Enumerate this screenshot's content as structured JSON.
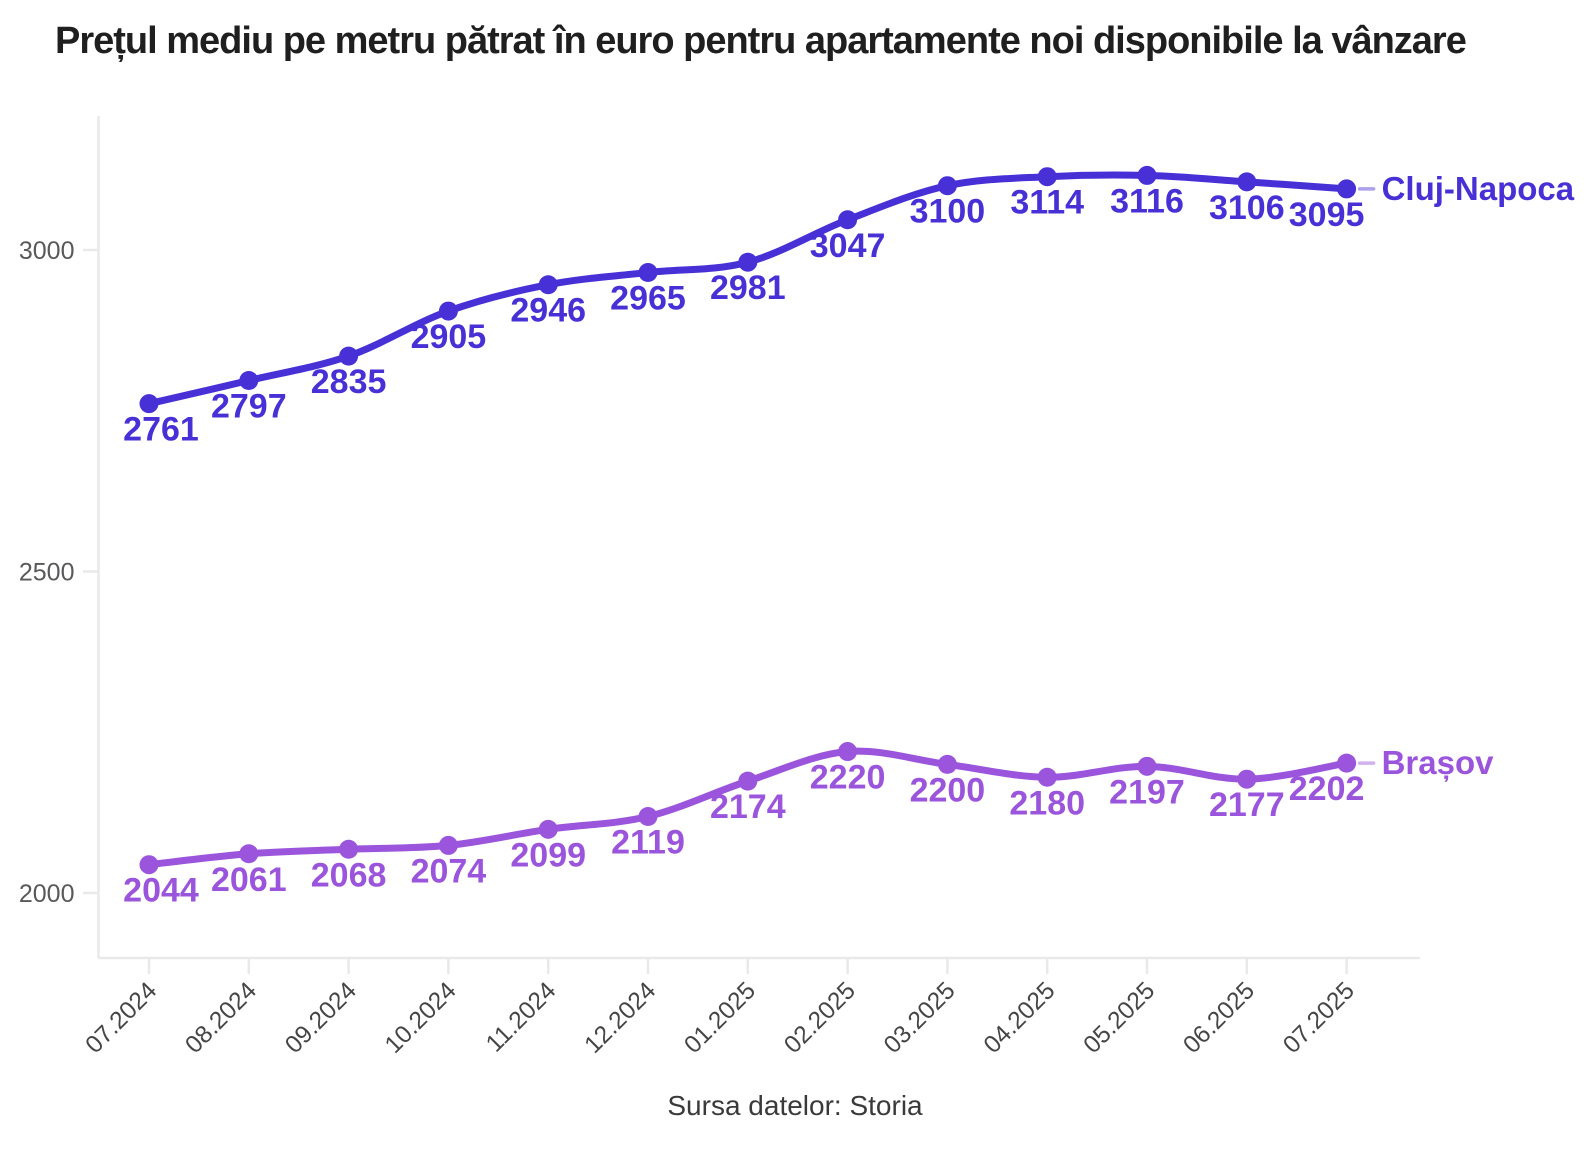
{
  "title": "Prețul mediu pe metru pătrat în euro pentru apartamente noi disponibile la vânzare",
  "source_note": "Sursa datelor: Storia",
  "chart_data": {
    "type": "line",
    "title": "Prețul mediu pe metru pătrat în euro pentru apartamente noi disponibile la vânzare",
    "source": "Sursa datelor: Storia",
    "categories": [
      "07.2024",
      "08.2024",
      "09.2024",
      "10.2024",
      "11.2024",
      "12.2024",
      "01.2025",
      "02.2025",
      "03.2025",
      "04.2025",
      "05.2025",
      "06.2025",
      "07.2025"
    ],
    "series": [
      {
        "name": "Cluj-Napoca",
        "color": "#4731d6",
        "values": [
          2761,
          2797,
          2835,
          2905,
          2946,
          2965,
          2981,
          3047,
          3100,
          3114,
          3116,
          3106,
          3095
        ]
      },
      {
        "name": "Brașov",
        "color": "#9b55dc",
        "values": [
          2044,
          2061,
          2068,
          2074,
          2099,
          2119,
          2174,
          2220,
          2200,
          2180,
          2197,
          2177,
          2202
        ]
      }
    ],
    "yticks": [
      2000,
      2500,
      3000
    ],
    "ylim": [
      1900,
      3260
    ],
    "grid": false,
    "value_labels": "below-points",
    "legend_position": "end-of-line",
    "axis_color": "#e9e9e9",
    "x_tick_label_color": "#454545",
    "y_tick_label_color": "#59595b"
  }
}
